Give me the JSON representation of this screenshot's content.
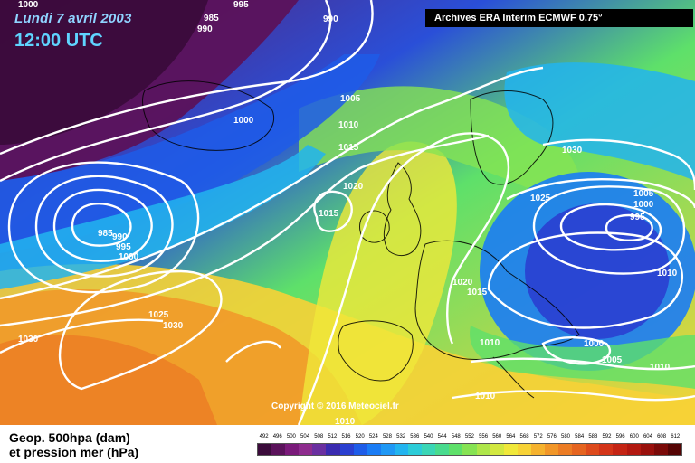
{
  "header": {
    "date": "Lundi 7 avril 2003",
    "time": "12:00 UTC",
    "archive": "Archives ERA Interim ECMWF 0.75°"
  },
  "copyright": "Copyright © 2016 Meteociel.fr",
  "legend": {
    "line1": "Geop. 500hpa (dam)",
    "line2": "et pression mer (hPa)",
    "scale_values": [
      "492",
      "496",
      "500",
      "504",
      "508",
      "512",
      "516",
      "520",
      "524",
      "528",
      "532",
      "536",
      "540",
      "544",
      "548",
      "552",
      "556",
      "560",
      "564",
      "568",
      "572",
      "576",
      "580",
      "584",
      "588",
      "592",
      "596",
      "600",
      "604",
      "608",
      "612"
    ],
    "scale_colors": [
      "#3b0b3b",
      "#5b125b",
      "#7a1a7a",
      "#8e2c8e",
      "#6a2fa0",
      "#3a2bb0",
      "#2a3fd0",
      "#1e5ce8",
      "#1a7cf5",
      "#1f98f5",
      "#22b4ef",
      "#2cccd8",
      "#3ad6b6",
      "#48db8e",
      "#5ee06a",
      "#86e353",
      "#aee64a",
      "#d2e840",
      "#f0e83a",
      "#f7d236",
      "#f5b22e",
      "#f19628",
      "#ec7c24",
      "#e56420",
      "#dd4a1c",
      "#d33418",
      "#c42414",
      "#b21810",
      "#99100c",
      "#7a0a08",
      "#550404"
    ]
  },
  "isobar_labels": [
    "1000",
    "985",
    "990",
    "995",
    "990",
    "1005",
    "1010",
    "1015",
    "1000",
    "1020",
    "1015",
    "985",
    "990",
    "995",
    "1000",
    "1030",
    "1025",
    "1005",
    "1000",
    "995",
    "1010",
    "1025",
    "1030",
    "1030",
    "1020",
    "1015",
    "1010",
    "1000",
    "1005",
    "1010",
    "1010",
    "1010"
  ],
  "colors": {
    "deep_low": "#3a0f3f",
    "purple": "#6b2480",
    "blue": "#1e5ce8",
    "cyan": "#22b4ef",
    "green": "#5ee06a",
    "yellow": "#f0e83a",
    "orange": "#f19628"
  }
}
